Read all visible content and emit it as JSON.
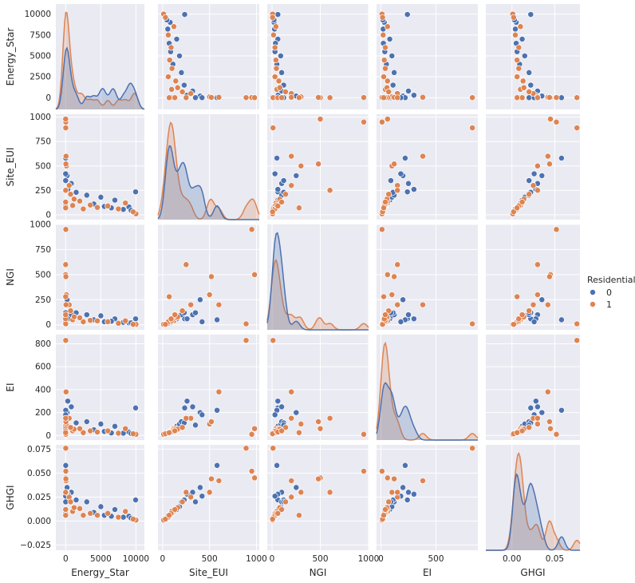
{
  "chart_data": {
    "type": "pairplot",
    "variables": [
      "Energy_Star",
      "Site_EUI",
      "NGI",
      "EI",
      "GHGI"
    ],
    "hue": "Residential",
    "legend": {
      "title": "Residential",
      "placement": "right",
      "entries": [
        {
          "label": "0",
          "color": "#4c72b0"
        },
        {
          "label": "1",
          "color": "#dd8452"
        }
      ]
    },
    "axes": {
      "Energy_Star": {
        "range": [
          -1400,
          11200
        ],
        "ticks": [
          0,
          2500,
          5000,
          7500,
          10000
        ],
        "x_ticks": [
          0,
          5000,
          10000
        ]
      },
      "Site_EUI": {
        "range": [
          -50,
          1030
        ],
        "ticks": [
          0,
          250,
          500,
          750,
          1000
        ],
        "x_ticks": [
          0,
          500,
          1000
        ]
      },
      "NGI": {
        "range": [
          -50,
          1000
        ],
        "ticks": [
          0,
          250,
          500,
          750,
          1000
        ],
        "x_ticks": [
          0,
          500,
          1000
        ]
      },
      "EI": {
        "range": [
          -40,
          880
        ],
        "ticks": [
          0,
          200,
          400,
          600,
          800
        ],
        "x_ticks": [
          0,
          500
        ]
      },
      "GHGI": {
        "range": [
          -0.0305,
          0.0795
        ],
        "ticks": [
          -0.025,
          0.0,
          0.025,
          0.05,
          0.075
        ],
        "x_ticks": [
          0.0,
          0.05
        ],
        "tick_text": [
          "−0.025",
          "0.000",
          "0.025",
          "0.050",
          "0.075"
        ],
        "x_tick_text": [
          "0.00",
          "0.05"
        ]
      }
    },
    "records": {
      "columns": [
        "Energy_Star",
        "Site_EUI",
        "NGI",
        "EI",
        "GHGI",
        "Residential"
      ],
      "rows": [
        [
          10000,
          10,
          5,
          10,
          0.001,
          1
        ],
        [
          9950,
          235,
          60,
          240,
          0.022,
          0
        ],
        [
          9000,
          80,
          20,
          30,
          0.005,
          0
        ],
        [
          8500,
          120,
          40,
          60,
          0.01,
          1
        ],
        [
          7500,
          60,
          15,
          20,
          0.004,
          1
        ],
        [
          7000,
          150,
          60,
          80,
          0.012,
          0
        ],
        [
          6000,
          90,
          30,
          40,
          0.008,
          1
        ],
        [
          5000,
          180,
          90,
          100,
          0.015,
          0
        ],
        [
          4500,
          75,
          40,
          30,
          0.006,
          1
        ],
        [
          4000,
          110,
          50,
          50,
          0.009,
          0
        ],
        [
          3000,
          200,
          100,
          120,
          0.02,
          0
        ],
        [
          2500,
          60,
          30,
          25,
          0.006,
          1
        ],
        [
          2000,
          140,
          70,
          60,
          0.013,
          1
        ],
        [
          1500,
          230,
          120,
          110,
          0.022,
          0
        ],
        [
          1000,
          95,
          50,
          40,
          0.01,
          1
        ],
        [
          500,
          300,
          200,
          150,
          0.025,
          1
        ],
        [
          200,
          400,
          250,
          200,
          0.035,
          0
        ],
        [
          100,
          500,
          300,
          100,
          0.03,
          1
        ],
        [
          50,
          600,
          200,
          380,
          0.042,
          1
        ],
        [
          20,
          950,
          950,
          10,
          0.052,
          1
        ],
        [
          10,
          890,
          10,
          830,
          0.076,
          1
        ],
        [
          0,
          980,
          500,
          60,
          0.045,
          1
        ],
        [
          5,
          580,
          50,
          220,
          0.058,
          0
        ],
        [
          30,
          520,
          480,
          120,
          0.044,
          1
        ],
        [
          800,
          320,
          100,
          250,
          0.03,
          0
        ],
        [
          300,
          260,
          60,
          300,
          0.028,
          0
        ],
        [
          9600,
          30,
          5,
          15,
          0.002,
          1
        ],
        [
          9300,
          45,
          20,
          18,
          0.003,
          0
        ],
        [
          8200,
          55,
          25,
          20,
          0.004,
          0
        ],
        [
          6500,
          70,
          35,
          22,
          0.005,
          0
        ],
        [
          5500,
          85,
          30,
          35,
          0.006,
          0
        ],
        [
          3500,
          100,
          45,
          40,
          0.008,
          1
        ],
        [
          1200,
          160,
          80,
          55,
          0.014,
          1
        ],
        [
          700,
          210,
          140,
          70,
          0.02,
          1
        ],
        [
          0,
          90,
          60,
          30,
          0.008,
          1
        ],
        [
          0,
          130,
          100,
          40,
          0.012,
          1
        ],
        [
          0,
          70,
          280,
          25,
          0.006,
          1
        ],
        [
          0,
          250,
          600,
          150,
          0.03,
          1
        ],
        [
          0,
          350,
          120,
          90,
          0.02,
          0
        ],
        [
          0,
          420,
          30,
          180,
          0.026,
          0
        ]
      ]
    }
  }
}
